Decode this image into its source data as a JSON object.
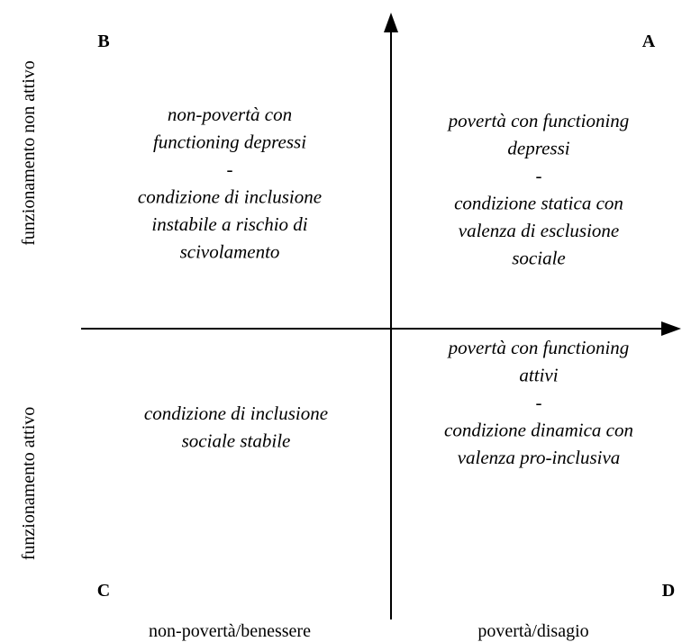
{
  "quadrants": [
    {
      "letter": "B",
      "lines": [
        "non-povertà con",
        "functioning depressi",
        "-",
        "condizione di inclusione",
        "instabile a rischio di",
        "scivolamento"
      ]
    },
    {
      "letter": "A",
      "lines": [
        "povertà con functioning",
        "depressi",
        "-",
        "condizione statica con",
        "valenza di esclusione",
        "sociale"
      ]
    },
    {
      "letter": "C",
      "lines": [
        "condizione di inclusione",
        "sociale stabile"
      ]
    },
    {
      "letter": "D",
      "lines": [
        "povertà con functioning",
        "attivi",
        "-",
        "condizione dinamica con",
        "valenza pro-inclusiva"
      ]
    }
  ],
  "axes": {
    "y_top": "funzionamento non attivo",
    "y_bottom": "funzionamento attivo",
    "x_left": "non-povertà/benessere",
    "x_right": "povertà/disagio"
  }
}
